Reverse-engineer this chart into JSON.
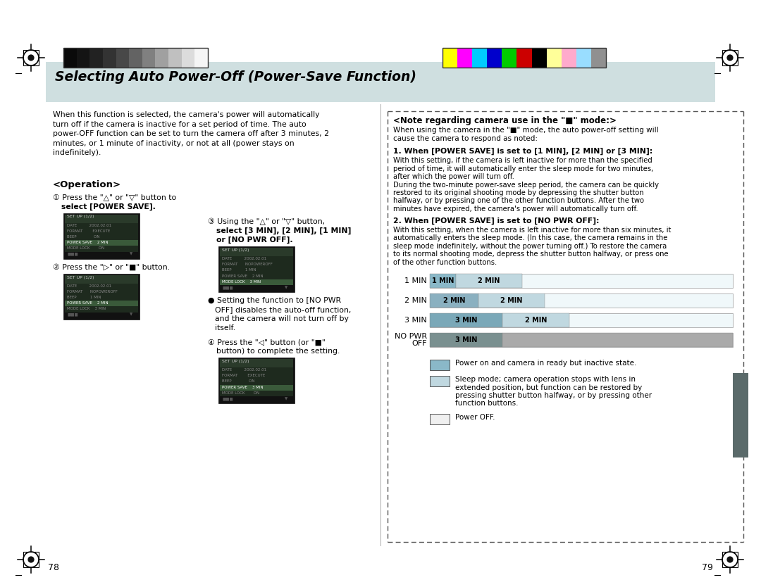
{
  "page_bg": "#ffffff",
  "header_bg": "#cfdfe0",
  "title_text": "Selecting Auto Power-Off (Power-Save Function)",
  "page_numbers": [
    "78",
    "79"
  ],
  "grayscale_colors": [
    "#0a0a0a",
    "#141414",
    "#222222",
    "#333333",
    "#484848",
    "#636363",
    "#808080",
    "#a0a0a0",
    "#c0c0c0",
    "#dcdcdc",
    "#f5f5f5"
  ],
  "color_swatches": [
    "#ffff00",
    "#ff00ff",
    "#00ccff",
    "#0000cc",
    "#00cc00",
    "#cc0000",
    "#000000",
    "#ffff99",
    "#ffaacc",
    "#99ddff",
    "#909090"
  ],
  "left_intro": "When this function is selected, the camera's power will automatically\nturn off if the camera is inactive for a set period of time. The auto\npower-OFF function can be set to turn the camera off after 3 minutes, 2\nminutes, or 1 minute of inactivity, or not at all (power stays on\nindefinitely).",
  "note_title": "<Note regarding camera use in the \"■\" mode:>",
  "note_intro1": "When using the camera in the \"■\" mode, the auto power-off setting will",
  "note_intro2": "cause the camera to respond as noted:",
  "note1_head": "1. When [POWER SAVE] is set to [1 MIN], [2 MIN] or [3 MIN]:",
  "note1_body": "With this setting, if the camera is left inactive for more than the specified\nperiod of time, it will automatically enter the sleep mode for two minutes,\nafter which the power will turn off.\nDuring the two-minute power-save sleep period, the camera can be quickly\nrestored to its original shooting mode by depressing the shutter button\nhalfway, or by pressing one of the other function buttons. After the two\nminutes have expired, the camera's power will automatically turn off.",
  "note2_head": "2. When [POWER SAVE] is set to [NO PWR OFF]:",
  "note2_body": "With this setting, when the camera is left inactive for more than six minutes, it\nautomatically enters the sleep mode. (In this case, the camera remains in the\nsleep mode indefinitely, without the power turning off.) To restore the camera\nto its normal shooting mode, depress the shutter button halfway, or press one\nof the other function buttons.",
  "diag_row1_label": "1 MIN",
  "diag_row2_label": "2 MIN",
  "diag_row3_label": "3 MIN",
  "diag_row4_label": "NO PWR\nOFF",
  "legend1_text": "Power on and camera in ready but inactive state.",
  "legend2_text": "Sleep mode; camera operation stops with lens in\nextended position, but function can be restored by\npressing shutter button halfway, or by pressing other\nfunction buttons.",
  "legend3_text": "Power OFF.",
  "dark_gray_tab": "#606060",
  "medium_gray_tab": "#909090",
  "light_blue_tab": "#b8d0d8",
  "lighter_blue": "#cce0e8",
  "pale_blue": "#ddeef4",
  "empty_bar": "#e8f4f6",
  "nopwr_dark": "#888888",
  "nopwr_light": "#aaaaaa",
  "sidebar_color": "#5a6a6a"
}
